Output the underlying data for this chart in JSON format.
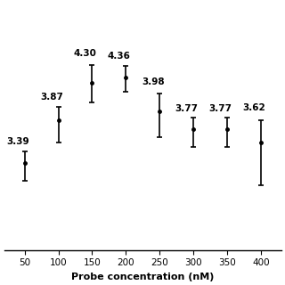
{
  "x": [
    50,
    100,
    150,
    200,
    250,
    300,
    350,
    400
  ],
  "y": [
    3.39,
    3.87,
    4.3,
    4.36,
    3.98,
    3.77,
    3.77,
    3.62
  ],
  "yerr_low": [
    0.2,
    0.25,
    0.22,
    0.16,
    0.3,
    0.2,
    0.2,
    0.48
  ],
  "yerr_high": [
    0.13,
    0.16,
    0.2,
    0.13,
    0.2,
    0.13,
    0.13,
    0.25
  ],
  "labels": [
    "3.39",
    "3.87",
    "4.30",
    "4.36",
    "3.98",
    "3.77",
    "3.77",
    "3.62"
  ],
  "label_offsets_x": [
    -10,
    -10,
    -10,
    -10,
    -10,
    -10,
    -10,
    -10
  ],
  "label_offsets_y": [
    0.06,
    0.06,
    0.08,
    0.06,
    0.08,
    0.06,
    0.06,
    0.1
  ],
  "xlabel": "Probe concentration (nM)",
  "ylim": [
    2.4,
    5.2
  ],
  "xlim": [
    20,
    430
  ],
  "xticks": [
    50,
    100,
    150,
    200,
    250,
    300,
    350,
    400
  ],
  "background_color": "#ffffff",
  "marker_color": "#000000",
  "label_fontsize": 7.5,
  "xlabel_fontsize": 8,
  "tick_fontsize": 7.5,
  "elinewidth": 1.2,
  "capsize": 2.5,
  "capthick": 1.2,
  "markersize": 2.5
}
